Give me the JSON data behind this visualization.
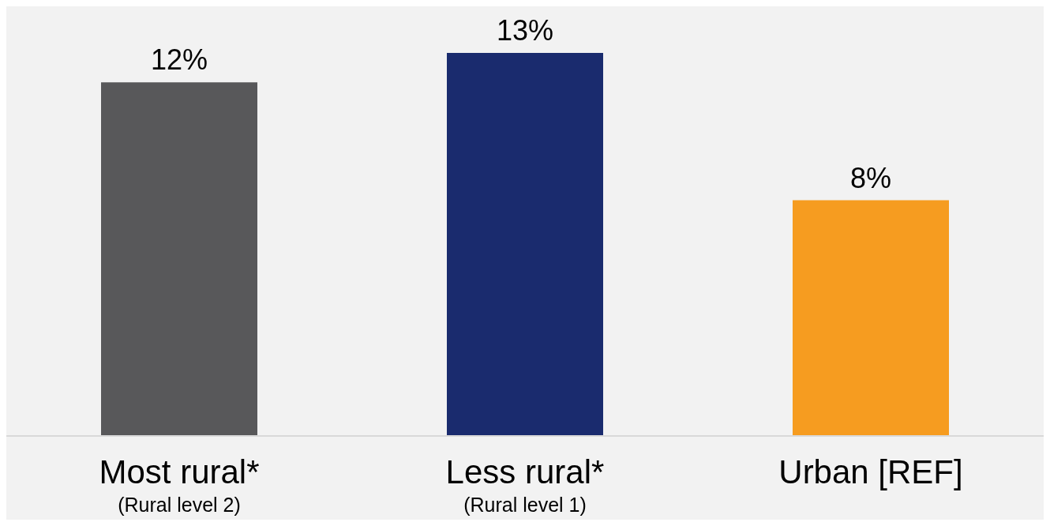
{
  "chart_data": {
    "type": "bar",
    "categories": [
      "Most rural*\n(Rural level 2)",
      "Less rural*\n(Rural level 1)",
      "Urban [REF]"
    ],
    "values": [
      12,
      13,
      8
    ],
    "colors": [
      "#58585a",
      "#1a2b6e",
      "#f69c20"
    ],
    "value_labels": [
      "12%",
      "13%",
      "8%"
    ],
    "grid": false,
    "legend": false
  }
}
